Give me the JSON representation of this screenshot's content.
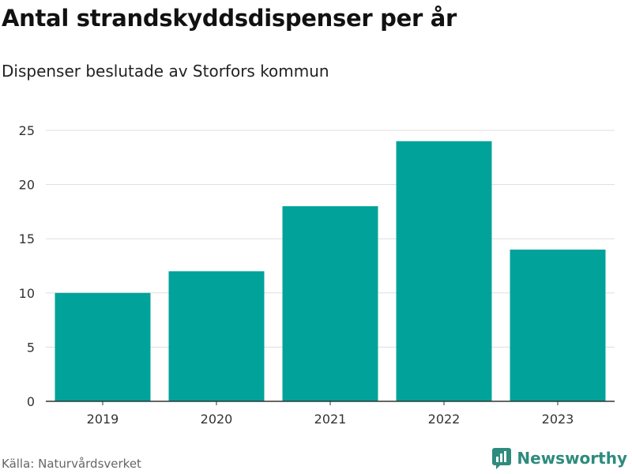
{
  "header": {
    "title": "Antal strandskyddsdispenser per år",
    "subtitle": "Dispenser beslutade av Storfors kommun"
  },
  "footer": {
    "source": "Källa: Naturvårdsverket",
    "brand": "Newsworthy",
    "brand_icon": "newsworthy-logo-icon"
  },
  "colors": {
    "bar": "#00a29a",
    "grid": "#dddddd",
    "axis": "#333333",
    "brand": "#2e8b7d"
  },
  "chart_data": {
    "type": "bar",
    "title": "Antal strandskyddsdispenser per år",
    "subtitle": "Dispenser beslutade av Storfors kommun",
    "categories": [
      "2019",
      "2020",
      "2021",
      "2022",
      "2023"
    ],
    "values": [
      10,
      12,
      18,
      24,
      14
    ],
    "xlabel": "",
    "ylabel": "",
    "ylim": [
      0,
      25
    ],
    "yticks": [
      0,
      5,
      10,
      15,
      20,
      25
    ],
    "grid": true,
    "legend": "none"
  }
}
